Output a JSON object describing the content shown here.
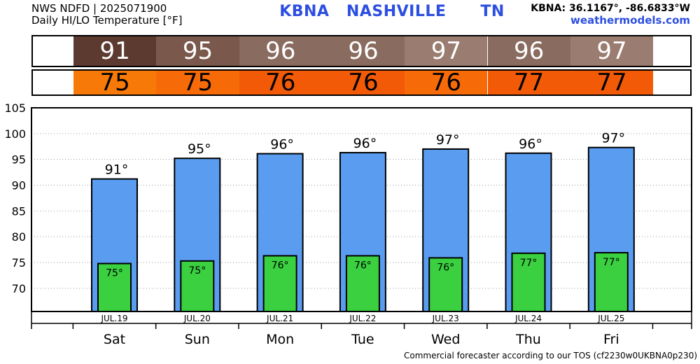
{
  "header": {
    "line1": "NWS NDFD | 2025071900",
    "line2": "Daily HI/LO Temperature [°F]",
    "station": "KBNA   NASHVILLE      TN",
    "coords": "KBNA: 36.1167°, -86.6833°W",
    "site": "weathermodels.com"
  },
  "footer": "Commercial forecaster according to our TOS (cf2230w0UKBNA0p230)",
  "colors": {
    "hi_bar": "#5a9cf0",
    "lo_bar": "#3ad040",
    "hi_strip": [
      "#5c3a30",
      "#7a584c",
      "#8a6b5f",
      "#8a6b5f",
      "#9b7c70",
      "#8a6b5f",
      "#9b7c70"
    ],
    "lo_strip": [
      "#f77a08",
      "#f76a08",
      "#f25a08",
      "#f25a08",
      "#f76a08",
      "#f25a08",
      "#f25a08"
    ]
  },
  "chart_data": {
    "type": "bar",
    "title": "Daily HI/LO Temperature [°F]",
    "categories": [
      "JUL.19",
      "JUL.20",
      "JUL.21",
      "JUL.22",
      "JUL.23",
      "JUL.24",
      "JUL.25"
    ],
    "days": [
      "Sat",
      "Sun",
      "Mon",
      "Tue",
      "Wed",
      "Thu",
      "Fri"
    ],
    "series": [
      {
        "name": "HI",
        "values": [
          91.2,
          95.2,
          96.1,
          96.3,
          97.0,
          96.2,
          97.3
        ],
        "labels": [
          "91°",
          "95°",
          "96°",
          "96°",
          "97°",
          "96°",
          "97°"
        ]
      },
      {
        "name": "LO",
        "values": [
          74.8,
          75.3,
          76.3,
          76.3,
          75.9,
          76.8,
          76.9
        ],
        "labels": [
          "75°",
          "75°",
          "76°",
          "76°",
          "76°",
          "77°",
          "77°"
        ]
      }
    ],
    "strip_hi": [
      "91",
      "95",
      "96",
      "96",
      "97",
      "96",
      "97"
    ],
    "strip_lo": [
      "75",
      "75",
      "76",
      "76",
      "76",
      "77",
      "77"
    ],
    "yticks": [
      70,
      75,
      80,
      85,
      90,
      95,
      100,
      105
    ],
    "ylim": [
      65.5,
      105
    ],
    "grid": true
  }
}
